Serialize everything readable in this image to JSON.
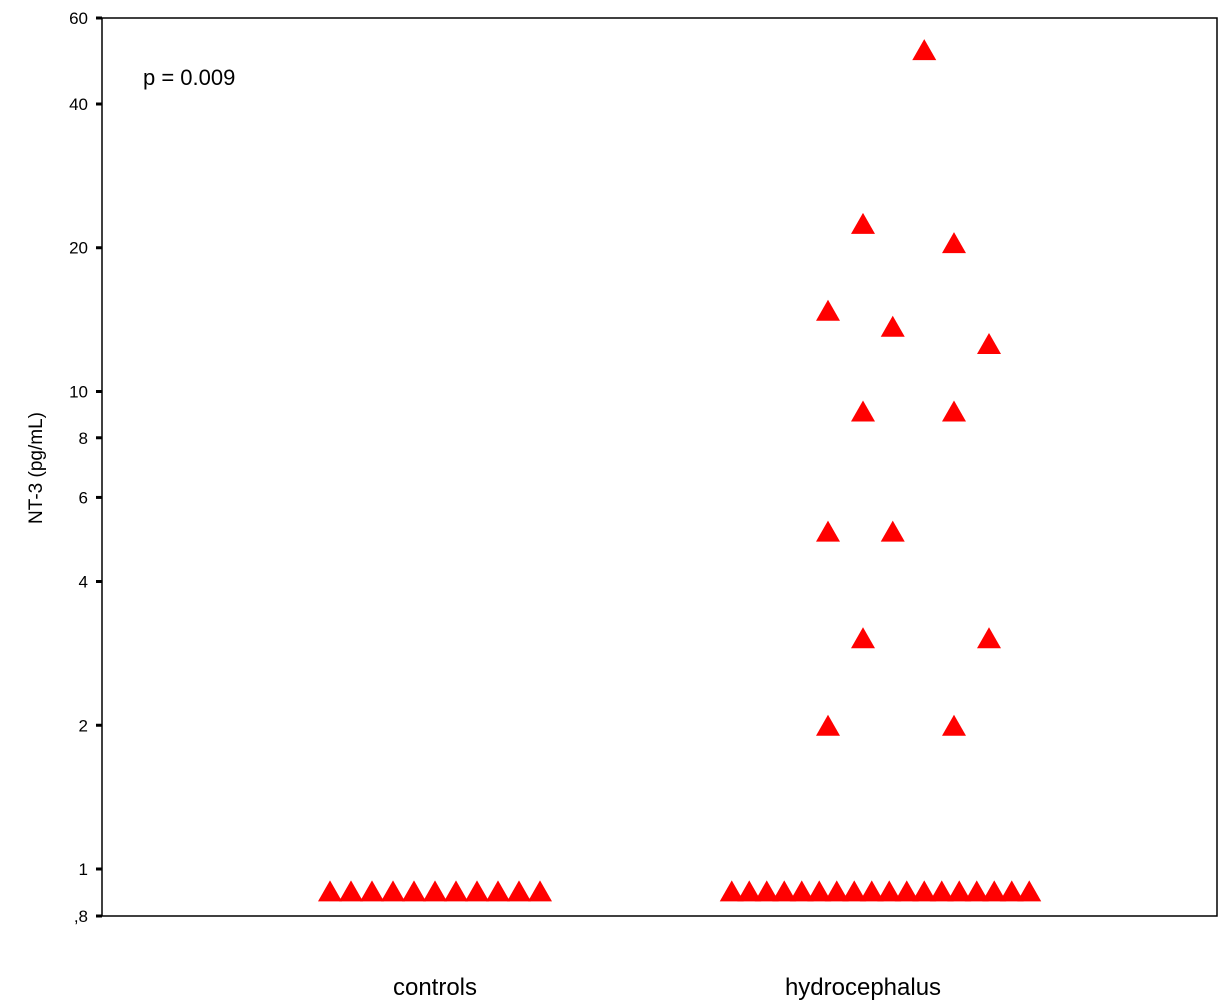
{
  "chart_data": {
    "type": "scatter",
    "title": "",
    "ylabel": "NT-3 (pg/mL)",
    "xlabel": "",
    "yscale": "log",
    "ylim": [
      0.8,
      60
    ],
    "yticks": [
      {
        "value": 60,
        "label": "60"
      },
      {
        "value": 40,
        "label": "40"
      },
      {
        "value": 20,
        "label": "20"
      },
      {
        "value": 10,
        "label": "10"
      },
      {
        "value": 8,
        "label": "8"
      },
      {
        "value": 6,
        "label": "6"
      },
      {
        "value": 4,
        "label": "4"
      },
      {
        "value": 2,
        "label": "2"
      },
      {
        "value": 1,
        "label": "1"
      },
      {
        "value": 0.8,
        "label": ",8"
      }
    ],
    "categories": [
      "controls",
      "hydrocephalus"
    ],
    "annotation": "p = 0.009",
    "marker": "triangle",
    "marker_color": "#ff0000",
    "grid": false,
    "series": [
      {
        "category": "controls",
        "points": [
          {
            "offset": -0.6,
            "y": 0.9
          },
          {
            "offset": -0.48,
            "y": 0.9
          },
          {
            "offset": -0.36,
            "y": 0.9
          },
          {
            "offset": -0.24,
            "y": 0.9
          },
          {
            "offset": -0.12,
            "y": 0.9
          },
          {
            "offset": 0.0,
            "y": 0.9
          },
          {
            "offset": 0.12,
            "y": 0.9
          },
          {
            "offset": 0.24,
            "y": 0.9
          },
          {
            "offset": 0.36,
            "y": 0.9
          },
          {
            "offset": 0.48,
            "y": 0.9
          },
          {
            "offset": 0.6,
            "y": 0.9
          }
        ]
      },
      {
        "category": "hydrocephalus",
        "points": [
          {
            "offset": 0.35,
            "y": 52
          },
          {
            "offset": 0.0,
            "y": 22.5
          },
          {
            "offset": 0.52,
            "y": 20.5
          },
          {
            "offset": -0.2,
            "y": 14.8
          },
          {
            "offset": 0.17,
            "y": 13.7
          },
          {
            "offset": 0.72,
            "y": 12.6
          },
          {
            "offset": 0.0,
            "y": 9.1
          },
          {
            "offset": 0.52,
            "y": 9.1
          },
          {
            "offset": -0.2,
            "y": 5.1
          },
          {
            "offset": 0.17,
            "y": 5.1
          },
          {
            "offset": 0.0,
            "y": 3.05
          },
          {
            "offset": 0.72,
            "y": 3.05
          },
          {
            "offset": -0.2,
            "y": 2.0
          },
          {
            "offset": 0.52,
            "y": 2.0
          },
          {
            "offset": -0.75,
            "y": 0.9
          },
          {
            "offset": -0.65,
            "y": 0.9
          },
          {
            "offset": -0.55,
            "y": 0.9
          },
          {
            "offset": -0.45,
            "y": 0.9
          },
          {
            "offset": -0.35,
            "y": 0.9
          },
          {
            "offset": -0.25,
            "y": 0.9
          },
          {
            "offset": -0.15,
            "y": 0.9
          },
          {
            "offset": -0.05,
            "y": 0.9
          },
          {
            "offset": 0.05,
            "y": 0.9
          },
          {
            "offset": 0.15,
            "y": 0.9
          },
          {
            "offset": 0.25,
            "y": 0.9
          },
          {
            "offset": 0.35,
            "y": 0.9
          },
          {
            "offset": 0.45,
            "y": 0.9
          },
          {
            "offset": 0.55,
            "y": 0.9
          },
          {
            "offset": 0.65,
            "y": 0.9
          },
          {
            "offset": 0.75,
            "y": 0.9
          },
          {
            "offset": 0.85,
            "y": 0.9
          },
          {
            "offset": 0.95,
            "y": 0.9
          }
        ]
      }
    ]
  }
}
